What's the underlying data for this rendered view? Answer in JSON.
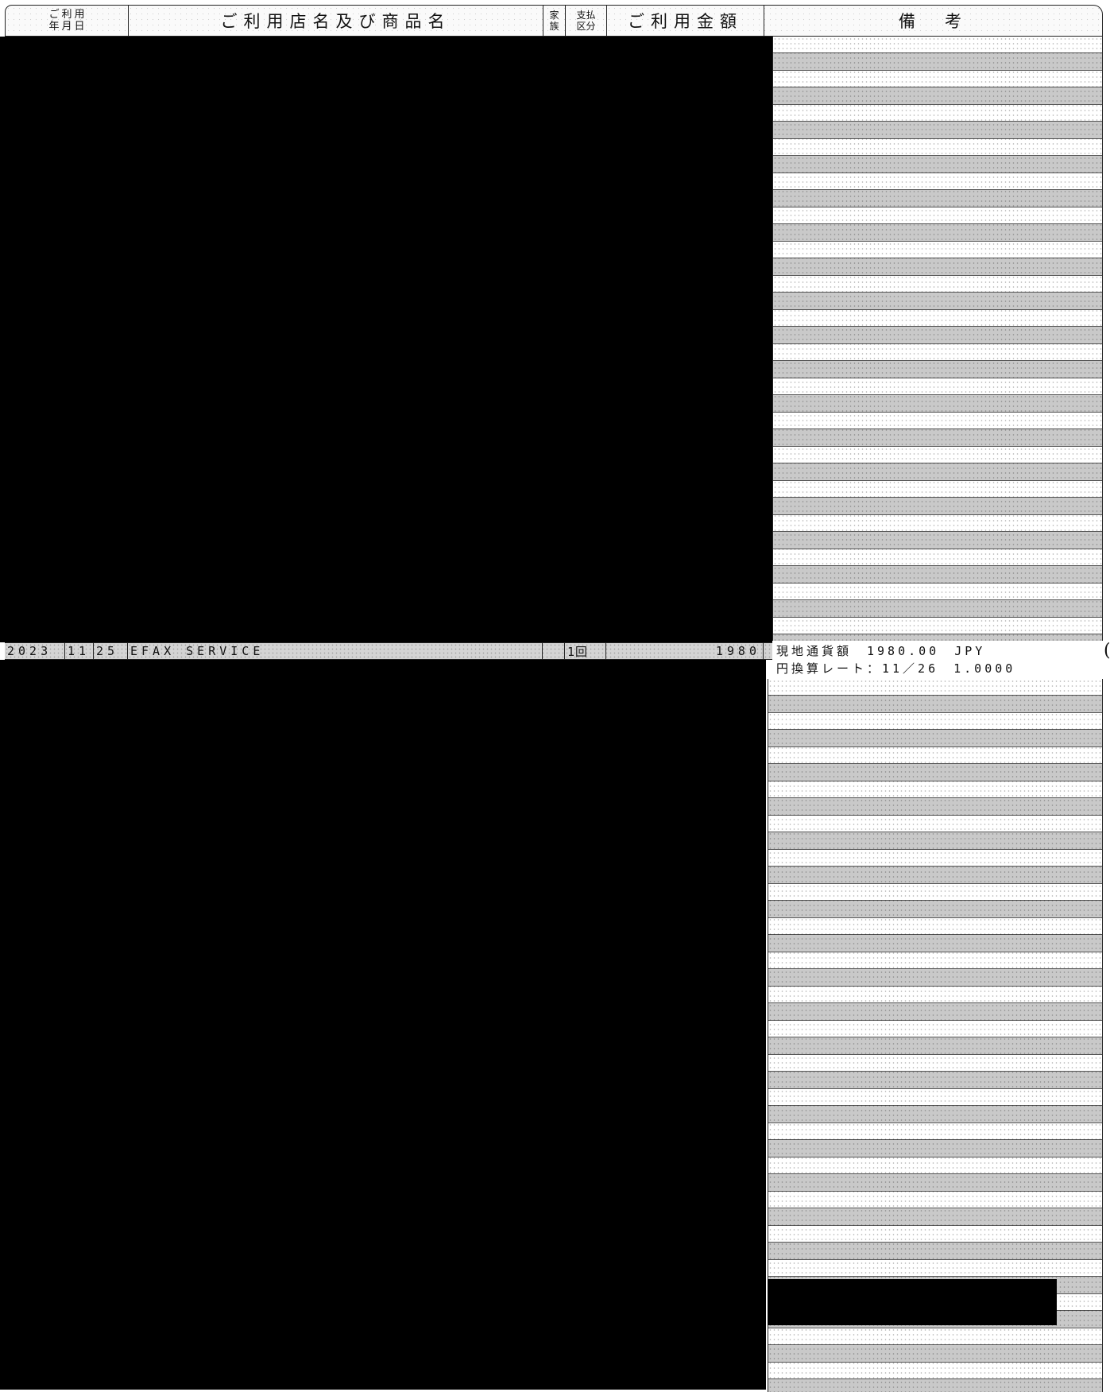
{
  "header": {
    "date_col": {
      "top": [
        "ご",
        "利",
        "用"
      ],
      "bottom": [
        "年",
        "月",
        "日"
      ]
    },
    "merchant_col": "ご利用店名及び商品名",
    "family_col": [
      "家",
      "族"
    ],
    "payment_col": [
      "支払",
      "区分"
    ],
    "amount_col": "ご利用金額",
    "remarks_col": "備　考"
  },
  "transaction": {
    "year": "2023",
    "month": "11",
    "day": "25",
    "merchant": "EFAX SERVICE",
    "family": "",
    "payment_type": "1回",
    "amount": "1980"
  },
  "remarks": {
    "line1": "現地通貨額　1980.00　JPY",
    "line2": "円換算レート：11／26　1.0000"
  }
}
